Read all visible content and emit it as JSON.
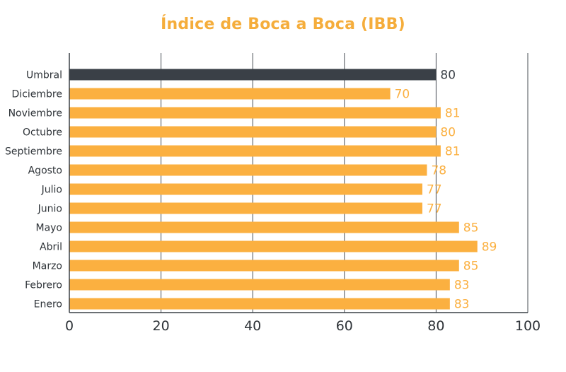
{
  "chart_data": {
    "type": "bar",
    "orientation": "horizontal",
    "title": "Índice de Boca a Boca (IBB)",
    "xlabel": "",
    "ylabel": "",
    "xlim": [
      0,
      100
    ],
    "x_ticks": [
      0,
      20,
      40,
      60,
      80,
      100
    ],
    "grid": true,
    "categories": [
      "Umbral",
      "Diciembre",
      "Noviembre",
      "Octubre",
      "Septiembre",
      "Agosto",
      "Julio",
      "Junio",
      "Mayo",
      "Abril",
      "Marzo",
      "Febrero",
      "Enero"
    ],
    "values": [
      80,
      70,
      81,
      80,
      81,
      78,
      77,
      77,
      85,
      89,
      85,
      83,
      83
    ],
    "data_labels": [
      "80",
      "70",
      "81",
      "80",
      "81",
      "78",
      "77",
      "77",
      "85",
      "89",
      "85",
      "83",
      "83"
    ],
    "colors": {
      "threshold": "#3a4047",
      "bar": "#fbb040",
      "title": "#f5ad3b",
      "axis": "#3a4047",
      "text": "#2e3338"
    }
  }
}
